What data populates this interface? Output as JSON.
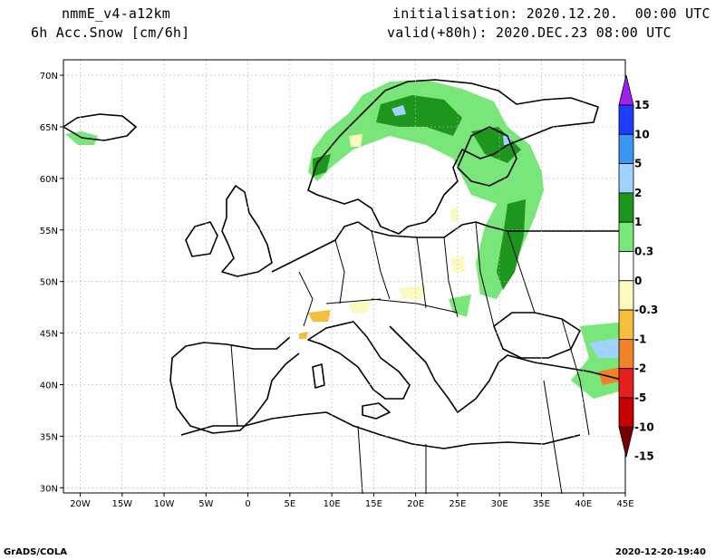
{
  "header": {
    "model": "nmmE_v4-a12km",
    "variable": "6h Acc.Snow [cm/6h]",
    "initialisation": "initialisation: 2020.12.20.  00:00 UTC",
    "valid": "valid(+80h): 2020.DEC.23 08:00 UTC"
  },
  "footer": {
    "credit": "GrADS/COLA",
    "timestamp": "2020-12-20-19:40"
  },
  "map": {
    "lon_labels": [
      "20W",
      "15W",
      "10W",
      "5W",
      "0",
      "5E",
      "10E",
      "15E",
      "20E",
      "25E",
      "30E",
      "35E",
      "40E",
      "45E"
    ],
    "lat_labels": [
      "70N",
      "65N",
      "60N",
      "55N",
      "50N",
      "45N",
      "40N",
      "35N",
      "30N"
    ],
    "lon_range": [
      -22,
      45
    ],
    "lat_range": [
      29.5,
      71.5
    ],
    "grid": "dotted"
  },
  "legend": {
    "labels": [
      "15",
      "10",
      "5",
      "2",
      "1",
      "0.3",
      "0",
      "-0.3",
      "-1",
      "-2",
      "-5",
      "-10",
      "-15"
    ],
    "colors": [
      "#a020f0",
      "#1e3cff",
      "#3c96f5",
      "#a0d2ff",
      "#1e961e",
      "#78e678",
      "#ffffff",
      "#fafabe",
      "#f5be3c",
      "#f08228",
      "#e61e1e",
      "#c80000",
      "#780000"
    ]
  }
}
